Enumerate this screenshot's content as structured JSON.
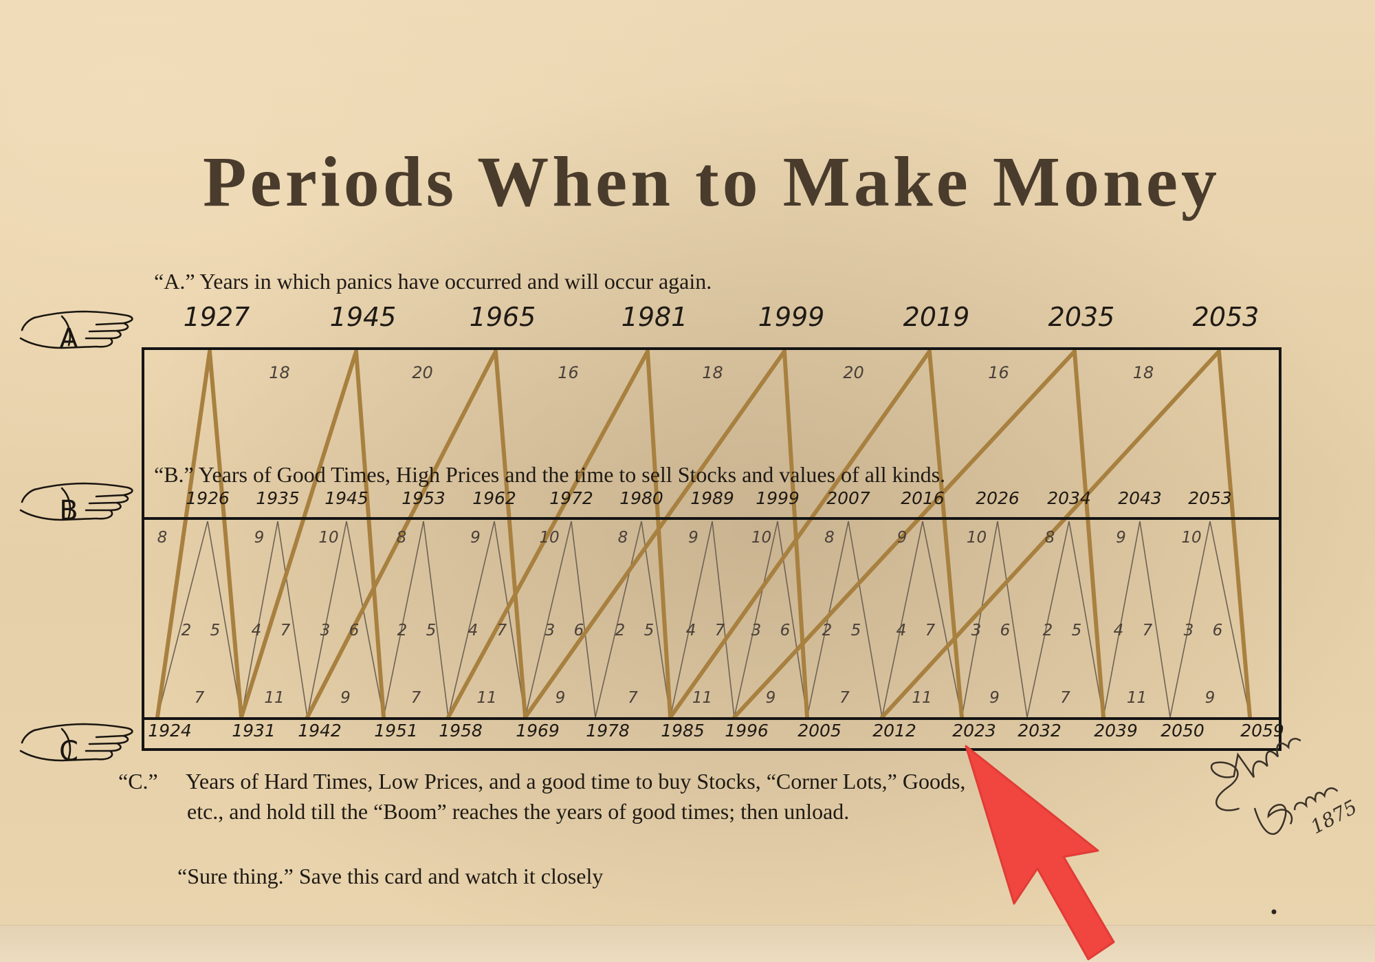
{
  "title": "Periods When to Make Money",
  "notes": {
    "a": "“A.” Years in which panics have occurred and will occur again.",
    "b": "“B.” Years of Good Times, High Prices and the time to sell Stocks and values of all kinds.",
    "c_marker": "“C.”",
    "c_line1": "Years of Hard Times, Low Prices, and a good time to buy Stocks, “Corner Lots,” Goods,",
    "c_line2": "etc., and hold till  the “Boom” reaches the years of good times; then unload.",
    "sure": "“Sure thing.” Save this card and watch it closely"
  },
  "hands": [
    "A",
    "B",
    "C"
  ],
  "signature": {
    "name": "Samuel Benner",
    "year": "1875"
  },
  "colors": {
    "major_line": "#a8803f",
    "minor_line": "#6e6253",
    "frame": "#141414",
    "arrow": "#f0463f",
    "text": "#1f1a14"
  },
  "chart_data": {
    "type": "cycle-diagram",
    "panic_years": [
      "1927",
      "1945",
      "1965",
      "1981",
      "1999",
      "2019",
      "2035",
      "2053"
    ],
    "panic_intervals": [
      "18",
      "20",
      "16",
      "18",
      "20",
      "16",
      "18"
    ],
    "good_times_years": [
      "1926",
      "1935",
      "1945",
      "1953",
      "1962",
      "1972",
      "1980",
      "1989",
      "1999",
      "2007",
      "2016",
      "2026",
      "2034",
      "2043",
      "2053"
    ],
    "good_times_intervals": [
      "8",
      "9",
      "10",
      "8",
      "9",
      "10",
      "8",
      "9",
      "10",
      "8",
      "9",
      "10",
      "8",
      "9",
      "10"
    ],
    "hard_times_years": [
      "1924",
      "1931",
      "1942",
      "1951",
      "1958",
      "1969",
      "1978",
      "1985",
      "1996",
      "2005",
      "2012",
      "2023",
      "2032",
      "2039",
      "2050",
      "2059"
    ],
    "hard_times_intervals": [
      "7",
      "11",
      "9",
      "7",
      "11",
      "9",
      "7",
      "11",
      "9",
      "7",
      "11",
      "9",
      "7",
      "11",
      "9"
    ],
    "rise_fall_pairs": [
      [
        "2",
        "5"
      ],
      [
        "4",
        "7"
      ],
      [
        "3",
        "6"
      ],
      [
        "2",
        "5"
      ],
      [
        "4",
        "7"
      ],
      [
        "3",
        "6"
      ],
      [
        "2",
        "5"
      ],
      [
        "4",
        "7"
      ],
      [
        "3",
        "6"
      ],
      [
        "2",
        "5"
      ],
      [
        "4",
        "7"
      ],
      [
        "3",
        "6"
      ],
      [
        "2",
        "5"
      ],
      [
        "4",
        "7"
      ],
      [
        "3",
        "6"
      ]
    ],
    "highlighted_year": "2023"
  }
}
